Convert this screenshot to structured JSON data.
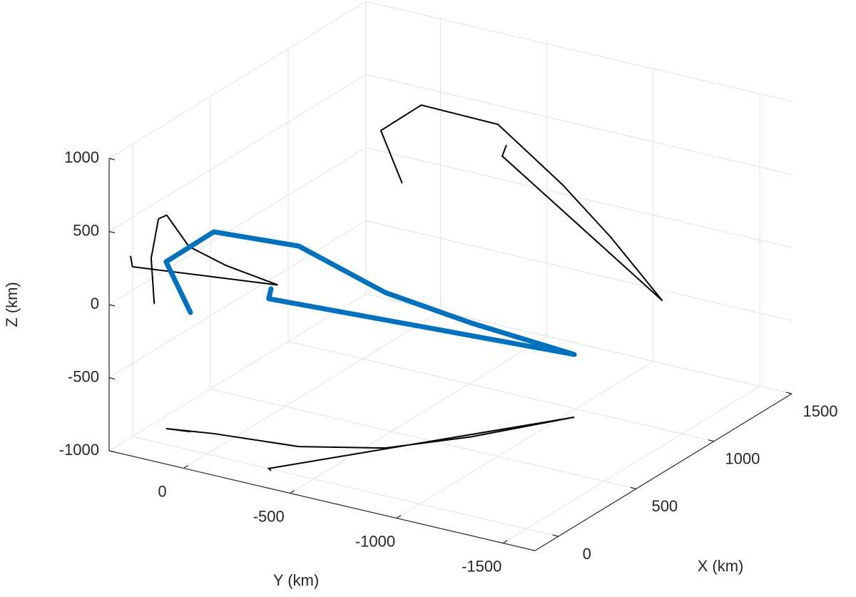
{
  "chart_data": {
    "type": "line3d",
    "xlabel": "X (km)",
    "ylabel": "Y (km)",
    "zlabel": "Z (km)",
    "xlim": [
      -150,
      1500
    ],
    "ylim": [
      -1650,
      350
    ],
    "zlim": [
      -1000,
      1000
    ],
    "xticks": [
      0,
      500,
      1000,
      1500
    ],
    "yticks": [
      0,
      -500,
      -1000,
      -1500
    ],
    "zticks": [
      -1000,
      -500,
      0,
      500,
      1000
    ],
    "grid": true,
    "projection_color": "#000000",
    "series": [
      {
        "color": "#0072bd",
        "x": [
          140,
          120,
          167,
          220,
          363,
          600,
          934,
          0,
          -13
        ],
        "y": [
          180,
          280,
          90,
          -270,
          -572,
          -800,
          -1042,
          -290,
          -310
        ],
        "z": [
          -185,
          141,
          380,
          371,
          63,
          -220,
          -571,
          161,
          244
        ]
      }
    ]
  }
}
